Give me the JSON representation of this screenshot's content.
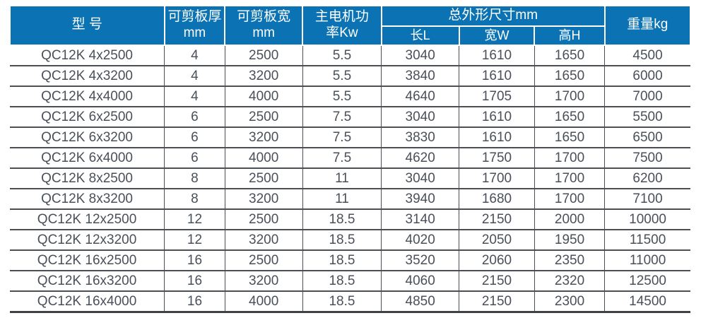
{
  "colors": {
    "header_bg": "#0b73b3",
    "header_text": "#ffffff",
    "grid_line": "#4b4e53",
    "body_text": "#4a505a"
  },
  "table": {
    "headers": {
      "model": "型 号",
      "thickness": "可剪板厚\nmm",
      "plate_width": "可剪板宽\nmm",
      "power": "主电机功\n率Kw",
      "dimensions_group": "总外形尺寸mm",
      "dim_length": "长L",
      "dim_width": "宽W",
      "dim_height": "高H",
      "weight": "重量kg"
    },
    "rows": [
      {
        "model": "QC12K 4x2500",
        "thickness": "4",
        "plate_width": "2500",
        "power": "5.5",
        "dim_length": "3040",
        "dim_width": "1610",
        "dim_height": "1650",
        "weight": "4500"
      },
      {
        "model": "QC12K 4x3200",
        "thickness": "4",
        "plate_width": "3200",
        "power": "5.5",
        "dim_length": "3840",
        "dim_width": "1610",
        "dim_height": "1650",
        "weight": "6000"
      },
      {
        "model": "QC12K 4x4000",
        "thickness": "4",
        "plate_width": "4000",
        "power": "5.5",
        "dim_length": "4640",
        "dim_width": "1705",
        "dim_height": "1700",
        "weight": "7000"
      },
      {
        "model": "QC12K 6x2500",
        "thickness": "6",
        "plate_width": "2500",
        "power": "7.5",
        "dim_length": "3040",
        "dim_width": "1610",
        "dim_height": "1650",
        "weight": "5500"
      },
      {
        "model": "QC12K 6x3200",
        "thickness": "6",
        "plate_width": "3200",
        "power": "7.5",
        "dim_length": "3830",
        "dim_width": "1610",
        "dim_height": "1650",
        "weight": "6500"
      },
      {
        "model": "QC12K 6x4000",
        "thickness": "6",
        "plate_width": "4000",
        "power": "7.5",
        "dim_length": "4620",
        "dim_width": "1750",
        "dim_height": "1700",
        "weight": "7500"
      },
      {
        "model": "QC12K 8x2500",
        "thickness": "8",
        "plate_width": "2500",
        "power": "11",
        "dim_length": "3040",
        "dim_width": "1700",
        "dim_height": "1700",
        "weight": "6200"
      },
      {
        "model": "QC12K 8x3200",
        "thickness": "8",
        "plate_width": "3200",
        "power": "11",
        "dim_length": "3940",
        "dim_width": "1680",
        "dim_height": "1700",
        "weight": "7100"
      },
      {
        "model": "QC12K 12x2500",
        "thickness": "12",
        "plate_width": "2500",
        "power": "18.5",
        "dim_length": "3140",
        "dim_width": "2150",
        "dim_height": "2000",
        "weight": "10000"
      },
      {
        "model": "QC12K 12x3200",
        "thickness": "12",
        "plate_width": "3200",
        "power": "18.5",
        "dim_length": "4020",
        "dim_width": "2050",
        "dim_height": "1950",
        "weight": "11500"
      },
      {
        "model": "QC12K 16x2500",
        "thickness": "16",
        "plate_width": "2500",
        "power": "18.5",
        "dim_length": "3520",
        "dim_width": "2060",
        "dim_height": "2350",
        "weight": "11000"
      },
      {
        "model": "QC12K 16x3200",
        "thickness": "16",
        "plate_width": "3200",
        "power": "18.5",
        "dim_length": "4060",
        "dim_width": "2150",
        "dim_height": "2320",
        "weight": "12500"
      },
      {
        "model": "QC12K 16x4000",
        "thickness": "16",
        "plate_width": "4000",
        "power": "18.5",
        "dim_length": "4850",
        "dim_width": "2150",
        "dim_height": "2300",
        "weight": "14500"
      }
    ]
  }
}
